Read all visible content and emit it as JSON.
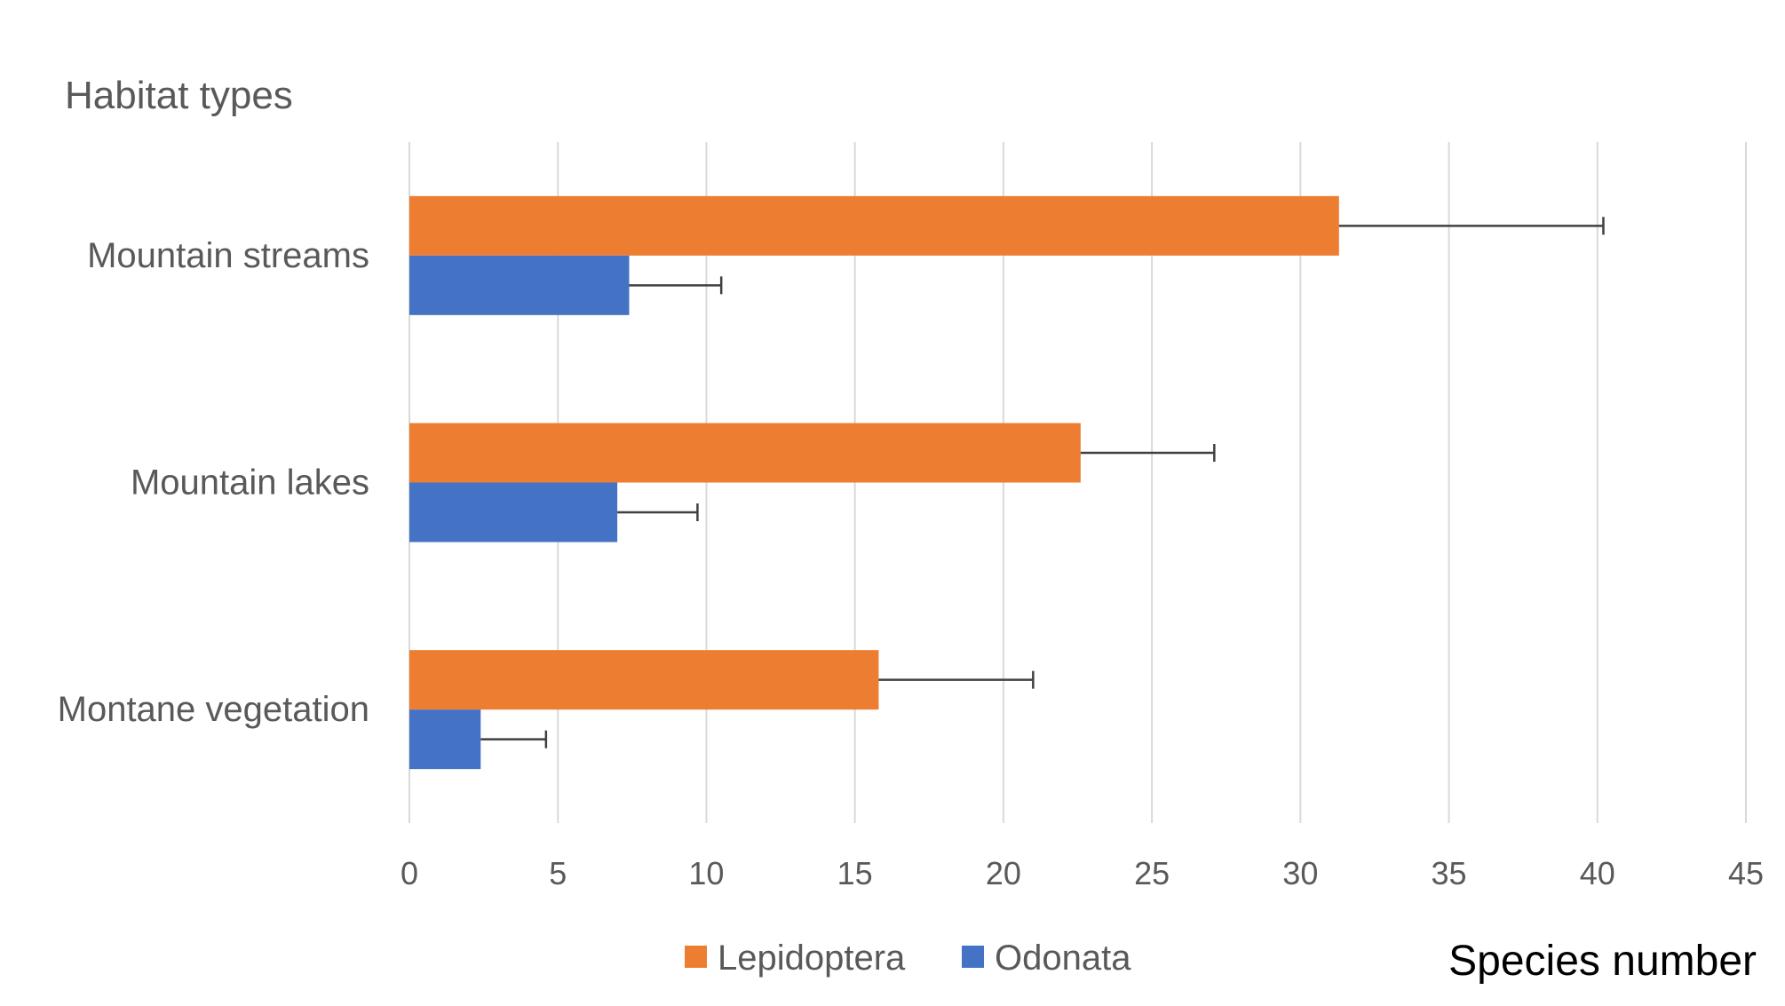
{
  "chart_data": {
    "type": "bar",
    "orientation": "horizontal",
    "title": "",
    "ylabel": "Habitat types",
    "xlabel": "Species number",
    "categories": [
      "Mountain streams",
      "Mountain lakes",
      "Montane vegetation"
    ],
    "series": [
      {
        "name": "Lepidoptera",
        "color": "#ED7D31",
        "values": [
          31.3,
          22.6,
          15.8
        ],
        "error": [
          8.9,
          4.5,
          5.2
        ]
      },
      {
        "name": "Odonata",
        "color": "#4472C4",
        "values": [
          7.4,
          7.0,
          2.4
        ],
        "error": [
          3.1,
          2.7,
          2.2
        ]
      }
    ],
    "xlim": [
      0,
      45
    ],
    "xticks": [
      "0",
      "5",
      "10",
      "15",
      "20",
      "25",
      "30",
      "35",
      "40",
      "45"
    ],
    "grid": true,
    "legend_position": "bottom",
    "colors": {
      "gridline": "#D9D9D9",
      "error_bar": "#404040",
      "axis_text": "#595959"
    }
  }
}
